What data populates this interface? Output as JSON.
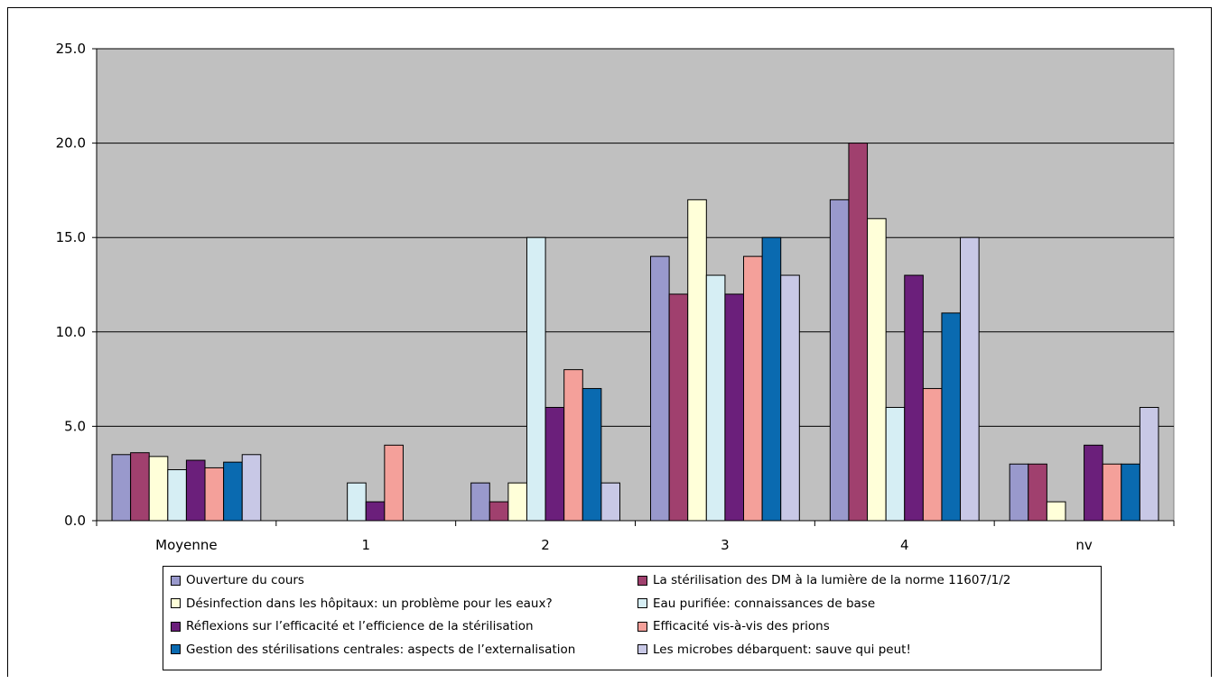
{
  "chart_data": {
    "type": "bar",
    "categories": [
      "Moyenne",
      "1",
      "2",
      "3",
      "4",
      "nv"
    ],
    "ylim": [
      0,
      25
    ],
    "yticks": [
      "0.0",
      "5.0",
      "10.0",
      "15.0",
      "20.0",
      "25.0"
    ],
    "ytick_values": [
      0,
      5,
      10,
      15,
      20,
      25
    ],
    "grid": true,
    "plot_background": "#c0c0c0",
    "legend_position": "bottom",
    "series": [
      {
        "name": "Ouverture du cours",
        "color": "#9999cc",
        "values": [
          3.5,
          0,
          2,
          14,
          17,
          3
        ]
      },
      {
        "name": "La stérilisation des DM à la lumière de la norme 11607/1/2",
        "color": "#a0406e",
        "values": [
          3.6,
          0,
          1,
          12,
          20,
          3
        ]
      },
      {
        "name": "Désinfection dans les hôpitaux: un problème pour les eaux?",
        "color": "#ffffd9",
        "values": [
          3.4,
          0,
          2,
          17,
          16,
          1
        ]
      },
      {
        "name": "Eau purifiée: connaissances de base",
        "color": "#d6eef4",
        "values": [
          2.7,
          2,
          15,
          13,
          6,
          0
        ]
      },
      {
        "name": "Réflexions sur l’efficacité et l’efficience de la stérilisation",
        "color": "#6b1f7b",
        "values": [
          3.2,
          1,
          6,
          12,
          13,
          4
        ]
      },
      {
        "name": "Efficacité vis-à-vis des prions",
        "color": "#f4a09a",
        "values": [
          2.8,
          4,
          8,
          14,
          7,
          3
        ]
      },
      {
        "name": "Gestion des stérilisations centrales: aspects de l’externalisation",
        "color": "#0a6ab0",
        "values": [
          3.1,
          0,
          7,
          15,
          11,
          3
        ]
      },
      {
        "name": "Les microbes débarquent: sauve qui peut!",
        "color": "#c8c8e6",
        "values": [
          3.5,
          0,
          2,
          13,
          15,
          6
        ]
      }
    ]
  }
}
